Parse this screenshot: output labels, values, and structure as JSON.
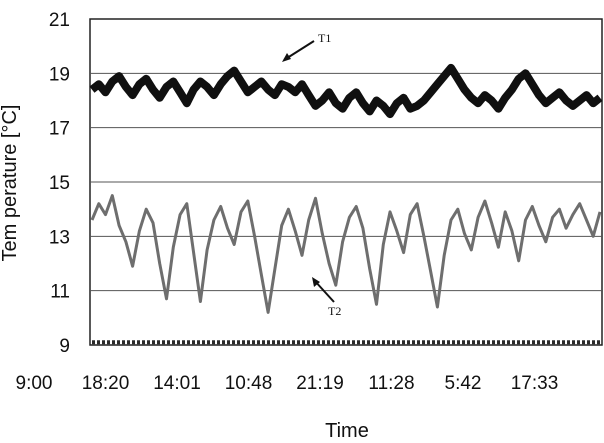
{
  "chart_data": {
    "type": "line",
    "xlabel": "Time",
    "ylabel": "Tem perature [°C]",
    "ylim": [
      9,
      21
    ],
    "yticks": [
      9,
      11,
      13,
      15,
      17,
      19,
      21
    ],
    "x_tick_labels": [
      "9:00",
      "18:20",
      "14:01",
      "10:48",
      "21:19",
      "11:28",
      "5:42",
      "17:33"
    ],
    "grid": "horizontal",
    "series": [
      {
        "name": "T1",
        "color": "#101010",
        "values": [
          18.4,
          18.6,
          18.3,
          18.7,
          18.9,
          18.5,
          18.2,
          18.6,
          18.8,
          18.4,
          18.1,
          18.5,
          18.7,
          18.3,
          17.9,
          18.4,
          18.7,
          18.5,
          18.2,
          18.6,
          18.9,
          19.1,
          18.7,
          18.3,
          18.5,
          18.7,
          18.4,
          18.2,
          18.6,
          18.5,
          18.3,
          18.6,
          18.2,
          17.8,
          18.0,
          18.3,
          17.9,
          17.7,
          18.1,
          18.3,
          17.9,
          17.6,
          18.0,
          17.8,
          17.5,
          17.9,
          18.1,
          17.7,
          17.8,
          18.0,
          18.3,
          18.6,
          18.9,
          19.2,
          18.8,
          18.4,
          18.1,
          17.9,
          18.2,
          18.0,
          17.7,
          18.1,
          18.4,
          18.8,
          19.0,
          18.6,
          18.2,
          17.9,
          18.1,
          18.3,
          18.0,
          17.8,
          18.0,
          18.2,
          17.9,
          18.1
        ]
      },
      {
        "name": "T2",
        "color": "#6e6e6e",
        "values": [
          13.6,
          14.2,
          13.8,
          14.5,
          13.4,
          12.8,
          11.9,
          13.2,
          14.0,
          13.5,
          12.0,
          10.7,
          12.6,
          13.8,
          14.2,
          12.4,
          10.6,
          12.5,
          13.6,
          14.1,
          13.3,
          12.7,
          13.9,
          14.3,
          13.0,
          11.6,
          10.2,
          11.8,
          13.4,
          14.0,
          13.2,
          12.3,
          13.6,
          14.4,
          13.1,
          12.0,
          11.2,
          12.8,
          13.7,
          14.1,
          13.3,
          11.8,
          10.5,
          12.7,
          13.9,
          13.2,
          12.4,
          13.8,
          14.2,
          13.0,
          11.7,
          10.4,
          12.3,
          13.6,
          14.0,
          13.1,
          12.5,
          13.7,
          14.3,
          13.5,
          12.6,
          13.9,
          13.2,
          12.1,
          13.6,
          14.1,
          13.4,
          12.8,
          13.7,
          14.0,
          13.3,
          13.8,
          14.2,
          13.6,
          13.0,
          13.9
        ]
      },
      {
        "name": "",
        "color": "#2a2a2a",
        "values": [
          9.1,
          9.1,
          9.1,
          9.1,
          9.1,
          9.1,
          9.1,
          9.1,
          9.1,
          9.1,
          9.1,
          9.1,
          9.1,
          9.1,
          9.1,
          9.1,
          9.1,
          9.1,
          9.1,
          9.1,
          9.1,
          9.1,
          9.1,
          9.1,
          9.1,
          9.1,
          9.1,
          9.1,
          9.1,
          9.1,
          9.1,
          9.1,
          9.1,
          9.1,
          9.1,
          9.1,
          9.1,
          9.1,
          9.1,
          9.1,
          9.1,
          9.1,
          9.1,
          9.1,
          9.1,
          9.1,
          9.1,
          9.1,
          9.1,
          9.1,
          9.1,
          9.1,
          9.1,
          9.1,
          9.1,
          9.1,
          9.1,
          9.1,
          9.1,
          9.1,
          9.1,
          9.1,
          9.1,
          9.1,
          9.1,
          9.1,
          9.1,
          9.1,
          9.1,
          9.1,
          9.1,
          9.1,
          9.1,
          9.1,
          9.1,
          9.1
        ]
      }
    ],
    "annotations": [
      {
        "label": "T1",
        "target_series": "T1"
      },
      {
        "label": "T2",
        "target_series": "T2"
      }
    ]
  }
}
